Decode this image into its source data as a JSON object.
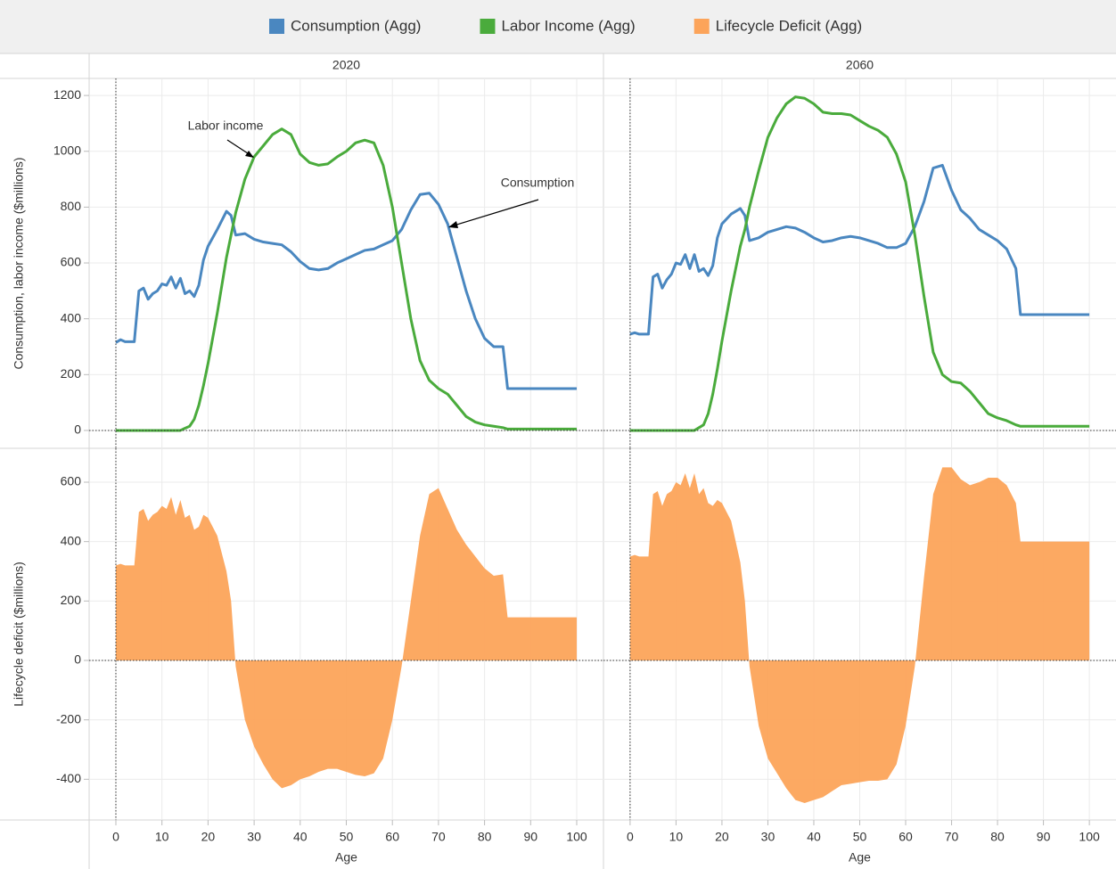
{
  "chart_data": {
    "type": "line",
    "columns": [
      "2020",
      "2060"
    ],
    "x_label": "Age",
    "x": [
      0,
      1,
      2,
      3,
      4,
      5,
      6,
      7,
      8,
      9,
      10,
      11,
      12,
      13,
      14,
      15,
      16,
      17,
      18,
      19,
      20,
      22,
      24,
      25,
      26,
      28,
      30,
      32,
      34,
      36,
      38,
      40,
      42,
      44,
      46,
      48,
      50,
      52,
      54,
      56,
      58,
      60,
      62,
      64,
      66,
      68,
      70,
      72,
      74,
      76,
      78,
      80,
      82,
      84,
      85,
      86,
      90,
      95,
      100
    ],
    "xlim": [
      -5.8,
      105.8
    ],
    "xticks": [
      0,
      10,
      20,
      30,
      40,
      50,
      60,
      70,
      80,
      90,
      100
    ],
    "grid": true,
    "rows": [
      {
        "y_label": "Consumption, labor income ($millions)",
        "ylim": [
          -64,
          1261
        ],
        "yticks": [
          0,
          200,
          400,
          600,
          800,
          1000,
          1200
        ]
      },
      {
        "y_label": "Lifecycle deficit ($millions)",
        "ylim": [
          -537,
          714
        ],
        "yticks": [
          -400,
          -200,
          0,
          200,
          400,
          600
        ]
      }
    ],
    "legend": "top",
    "series": [
      {
        "name": "Consumption (Agg)",
        "color": "#4a87c0",
        "type": "line",
        "row": 0,
        "panels": [
          [
            315,
            325,
            318,
            318,
            318,
            500,
            510,
            470,
            490,
            500,
            525,
            520,
            550,
            510,
            545,
            490,
            500,
            480,
            520,
            610,
            660,
            720,
            785,
            770,
            700,
            705,
            685,
            675,
            670,
            665,
            640,
            605,
            580,
            575,
            580,
            600,
            615,
            630,
            645,
            650,
            665,
            680,
            720,
            790,
            845,
            850,
            810,
            740,
            620,
            500,
            400,
            330,
            300,
            300,
            150,
            150,
            150,
            150,
            150
          ],
          [
            345,
            350,
            345,
            345,
            345,
            550,
            560,
            510,
            540,
            560,
            600,
            595,
            630,
            580,
            630,
            570,
            580,
            555,
            590,
            690,
            740,
            775,
            795,
            770,
            680,
            690,
            710,
            720,
            730,
            725,
            710,
            690,
            675,
            680,
            690,
            695,
            690,
            680,
            670,
            655,
            655,
            670,
            730,
            820,
            940,
            950,
            860,
            790,
            760,
            720,
            700,
            680,
            650,
            580,
            415,
            415,
            415,
            415,
            415
          ]
        ]
      },
      {
        "name": "Labor Income (Agg)",
        "color": "#4aab3c",
        "type": "line",
        "row": 0,
        "panels": [
          [
            0,
            0,
            0,
            0,
            0,
            0,
            0,
            0,
            0,
            0,
            0,
            0,
            0,
            0,
            0,
            8,
            15,
            40,
            90,
            160,
            240,
            420,
            620,
            700,
            780,
            900,
            980,
            1020,
            1060,
            1080,
            1060,
            990,
            960,
            950,
            955,
            980,
            1000,
            1030,
            1040,
            1030,
            950,
            800,
            600,
            400,
            250,
            180,
            150,
            130,
            90,
            50,
            30,
            20,
            15,
            10,
            5,
            5,
            5,
            5,
            5
          ],
          [
            0,
            0,
            0,
            0,
            0,
            0,
            0,
            0,
            0,
            0,
            0,
            0,
            0,
            0,
            0,
            10,
            20,
            60,
            130,
            220,
            320,
            500,
            660,
            720,
            800,
            930,
            1050,
            1120,
            1170,
            1195,
            1190,
            1170,
            1140,
            1135,
            1135,
            1130,
            1110,
            1090,
            1075,
            1050,
            990,
            890,
            700,
            480,
            280,
            200,
            175,
            170,
            140,
            100,
            60,
            45,
            35,
            20,
            15,
            15,
            15,
            15,
            15
          ]
        ]
      },
      {
        "name": "Lifecycle Deficit (Agg)",
        "color": "#fca45a",
        "type": "area",
        "row": 1,
        "panels": [
          [
            320,
            325,
            320,
            320,
            320,
            500,
            510,
            470,
            490,
            500,
            520,
            510,
            550,
            490,
            540,
            480,
            490,
            440,
            450,
            490,
            480,
            420,
            300,
            200,
            -20,
            -200,
            -290,
            -350,
            -400,
            -430,
            -420,
            -400,
            -390,
            -375,
            -365,
            -365,
            -375,
            -385,
            -390,
            -380,
            -330,
            -200,
            -20,
            200,
            420,
            560,
            580,
            510,
            440,
            390,
            350,
            310,
            285,
            290,
            145,
            145,
            145,
            145,
            145
          ],
          [
            350,
            355,
            350,
            350,
            350,
            560,
            570,
            520,
            560,
            570,
            600,
            590,
            630,
            580,
            630,
            560,
            580,
            530,
            520,
            540,
            530,
            470,
            330,
            200,
            -20,
            -220,
            -330,
            -380,
            -430,
            -470,
            -480,
            -470,
            -460,
            -440,
            -420,
            -415,
            -410,
            -405,
            -405,
            -400,
            -350,
            -220,
            -20,
            280,
            560,
            650,
            650,
            610,
            590,
            600,
            615,
            615,
            590,
            530,
            400,
            400,
            400,
            400,
            400
          ]
        ]
      }
    ],
    "annotations": [
      "Labor income",
      "Consumption"
    ]
  }
}
